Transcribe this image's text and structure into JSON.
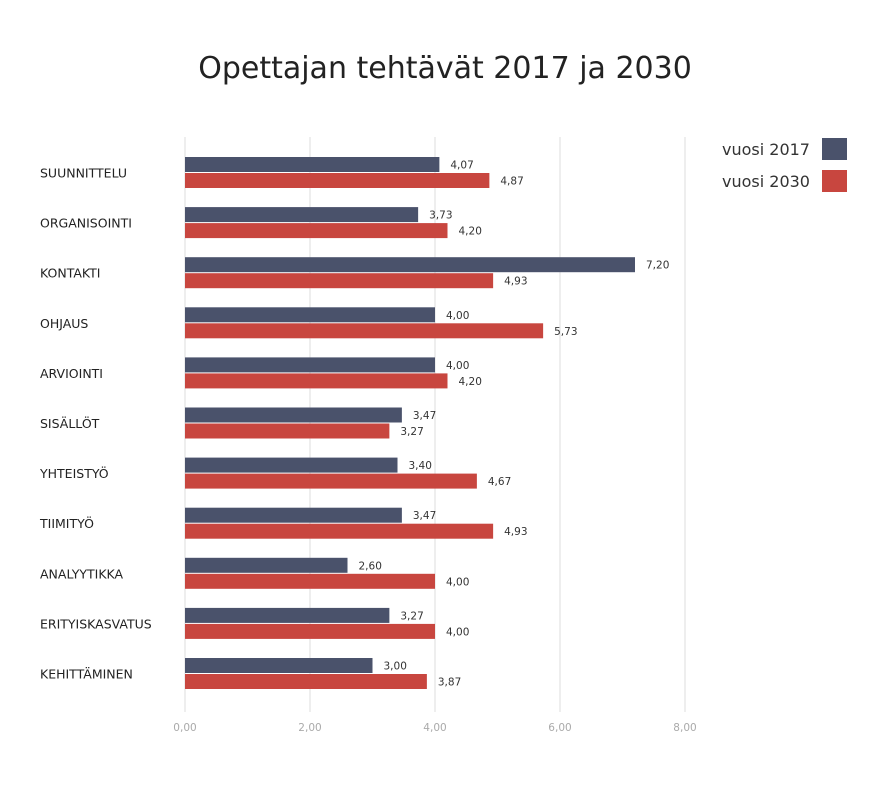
{
  "chart_data": {
    "type": "bar",
    "orientation": "horizontal",
    "title": "Opettajan tehtävät 2017 ja 2030",
    "categories": [
      "SUUNNITTELU",
      "ORGANISOINTI",
      "KONTAKTI",
      "OHJAUS",
      "ARVIOINTI",
      "SISÄLLÖT",
      "YHTEISTYÖ",
      "TIIMITYÖ",
      "ANALYYTIKKA",
      "ERITYISKASVATUS",
      "KEHITTÄMINEN"
    ],
    "series": [
      {
        "name": "vuosi 2017",
        "color": "#4a526b",
        "values": [
          4.07,
          3.73,
          7.2,
          4.0,
          4.0,
          3.47,
          3.4,
          3.47,
          2.6,
          3.27,
          3.0
        ],
        "labels": [
          "4,07",
          "3,73",
          "7,20",
          "4,00",
          "4,00",
          "3,47",
          "3,40",
          "3,47",
          "2,60",
          "3,27",
          "3,00"
        ]
      },
      {
        "name": "vuosi 2030",
        "color": "#c8463f",
        "values": [
          4.87,
          4.2,
          4.93,
          5.73,
          4.2,
          3.27,
          4.67,
          4.93,
          4.0,
          4.0,
          3.87
        ],
        "labels": [
          "4,87",
          "4,20",
          "4,93",
          "5,73",
          "4,20",
          "3,27",
          "4,67",
          "4,93",
          "4,00",
          "4,00",
          "3,87"
        ]
      }
    ],
    "xlim": [
      0,
      8
    ],
    "xticks": [
      0,
      2,
      4,
      6,
      8
    ],
    "xtick_labels": [
      "0,00",
      "2,00",
      "4,00",
      "6,00",
      "8,00"
    ],
    "grid": true,
    "legend_position": "top-right"
  }
}
